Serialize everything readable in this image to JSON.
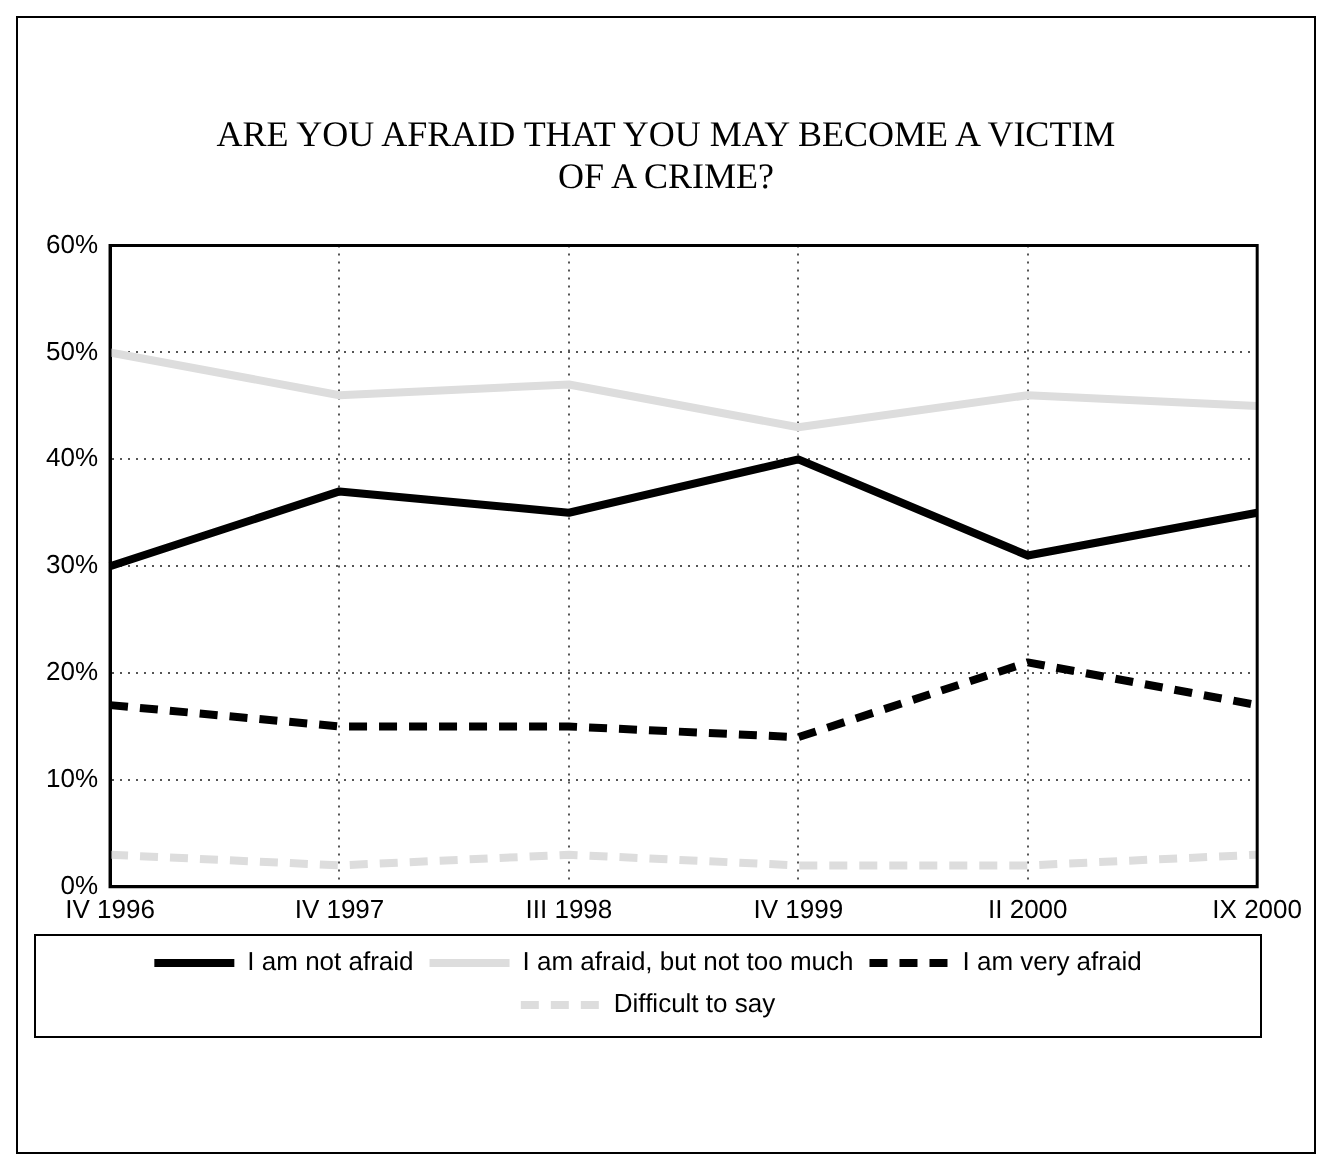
{
  "chart_data": {
    "type": "line",
    "title": "ARE YOU AFRAID THAT YOU MAY BECOME A VICTIM OF A CRIME?",
    "categories": [
      "IV 1996",
      "IV 1997",
      "III 1998",
      "IV 1999",
      "II 2000",
      "IX 2000"
    ],
    "series": [
      {
        "name": "I am not afraid",
        "color": "#000000",
        "line_style": "solid",
        "values": [
          30,
          37,
          35,
          40,
          31,
          35
        ]
      },
      {
        "name": "I am afraid, but not too much",
        "color": "#dddddd",
        "line_style": "solid",
        "values": [
          50,
          46,
          47,
          43,
          46,
          45
        ]
      },
      {
        "name": "I am very afraid",
        "color": "#000000",
        "line_style": "dashed",
        "values": [
          17,
          15,
          15,
          14,
          21,
          17
        ]
      },
      {
        "name": "Difficult to say",
        "color": "#dddddd",
        "line_style": "dashed",
        "values": [
          3,
          2,
          3,
          2,
          2,
          3
        ]
      }
    ],
    "ylim": [
      0,
      60
    ],
    "yticks": [
      {
        "value": 0,
        "label": "0%"
      },
      {
        "value": 10,
        "label": "10%"
      },
      {
        "value": 20,
        "label": "20%"
      },
      {
        "value": 30,
        "label": "30%"
      },
      {
        "value": 40,
        "label": "40%"
      },
      {
        "value": 50,
        "label": "50%"
      },
      {
        "value": 60,
        "label": "60%"
      }
    ],
    "grid": true,
    "legend": "bottom",
    "marker": "none"
  }
}
